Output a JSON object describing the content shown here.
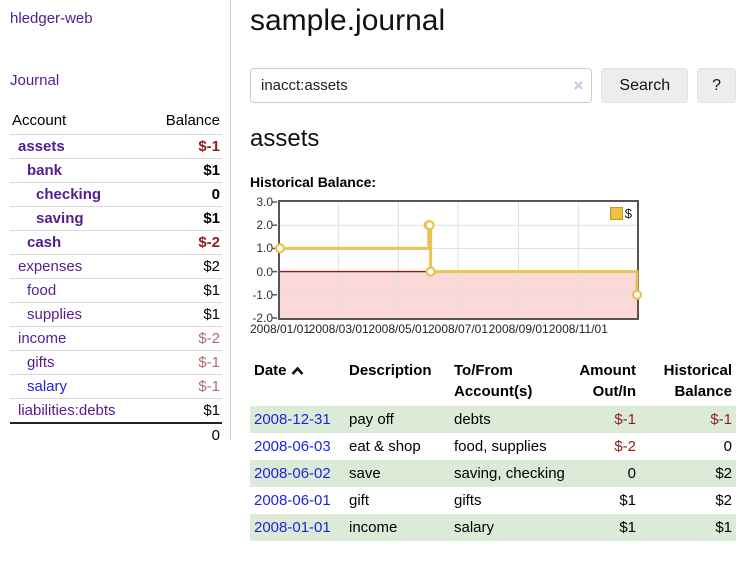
{
  "colors": {
    "link_purple": "#551c90",
    "link_blue": "#2222dd",
    "negative_strong": "#8e1e1e",
    "negative_muted": "#b56b72",
    "row_green": "#dcebd8",
    "chart_line": "#e9c353",
    "chart_negative_fill": "#fbd9d9",
    "chart_zero_line": "#8b1a1a",
    "chart_grid": "#e0e0e0",
    "chart_border": "#555555"
  },
  "sidebar": {
    "app_title": "hledger-web",
    "journal_link": "Journal",
    "accounts": {
      "header": {
        "account": "Account",
        "balance": "Balance"
      },
      "rows": [
        {
          "name": "assets",
          "balance": "$-1"
        },
        {
          "name": "bank",
          "balance": "$1"
        },
        {
          "name": "checking",
          "balance": "0"
        },
        {
          "name": "saving",
          "balance": "$1"
        },
        {
          "name": "cash",
          "balance": "$-2"
        },
        {
          "name": "expenses",
          "balance": "$2"
        },
        {
          "name": "food",
          "balance": "$1"
        },
        {
          "name": "supplies",
          "balance": "$1"
        },
        {
          "name": "income",
          "balance": "$-2"
        },
        {
          "name": "gifts",
          "balance": "$-1"
        },
        {
          "name": "salary",
          "balance": "$-1"
        },
        {
          "name": "liabilities:debts",
          "balance": "$1"
        }
      ],
      "total": "0"
    }
  },
  "main": {
    "title": "sample.journal",
    "search": {
      "value": "inacct:assets",
      "clear_icon": "×",
      "search_button": "Search",
      "help_button": "?"
    },
    "account_heading": "assets",
    "chart_title": "Historical Balance:"
  },
  "chart_data": {
    "type": "line",
    "step": true,
    "title": "Historical Balance",
    "series": [
      {
        "name": "$",
        "points": [
          [
            "2008-01-01",
            1
          ],
          [
            "2008-06-01",
            2
          ],
          [
            "2008-06-02",
            2
          ],
          [
            "2008-06-03",
            0
          ],
          [
            "2008-12-31",
            -1
          ]
        ]
      }
    ],
    "x_range": [
      "2008-01-01",
      "2008-12-31"
    ],
    "y_range": [
      -2,
      3
    ],
    "y_ticks": [
      "3.0",
      "2.0",
      "1.0",
      "0.0",
      "-1.0",
      "-2.0"
    ],
    "x_ticks": [
      "2008/01/01",
      "2008/03/01",
      "2008/05/01",
      "2008/07/01",
      "2008/09/01",
      "2008/11/01"
    ],
    "legend": [
      "$"
    ],
    "legend_position": "top-right",
    "grid": true,
    "negative_region_shaded": true
  },
  "register": {
    "headers": [
      "Date",
      "Description",
      "To/From Account(s)",
      "Amount Out/In",
      "Historical Balance"
    ],
    "rows": [
      {
        "date": "2008-12-31",
        "description": "pay off",
        "accounts": "debts",
        "amount": "$-1",
        "balance": "$-1"
      },
      {
        "date": "2008-06-03",
        "description": "eat & shop",
        "accounts": "food, supplies",
        "amount": "$-2",
        "balance": "0"
      },
      {
        "date": "2008-06-02",
        "description": "save",
        "accounts": "saving, checking",
        "amount": "0",
        "balance": "$2"
      },
      {
        "date": "2008-06-01",
        "description": "gift",
        "accounts": "gifts",
        "amount": "$1",
        "balance": "$2"
      },
      {
        "date": "2008-01-01",
        "description": "income",
        "accounts": "salary",
        "amount": "$1",
        "balance": "$1"
      }
    ]
  }
}
